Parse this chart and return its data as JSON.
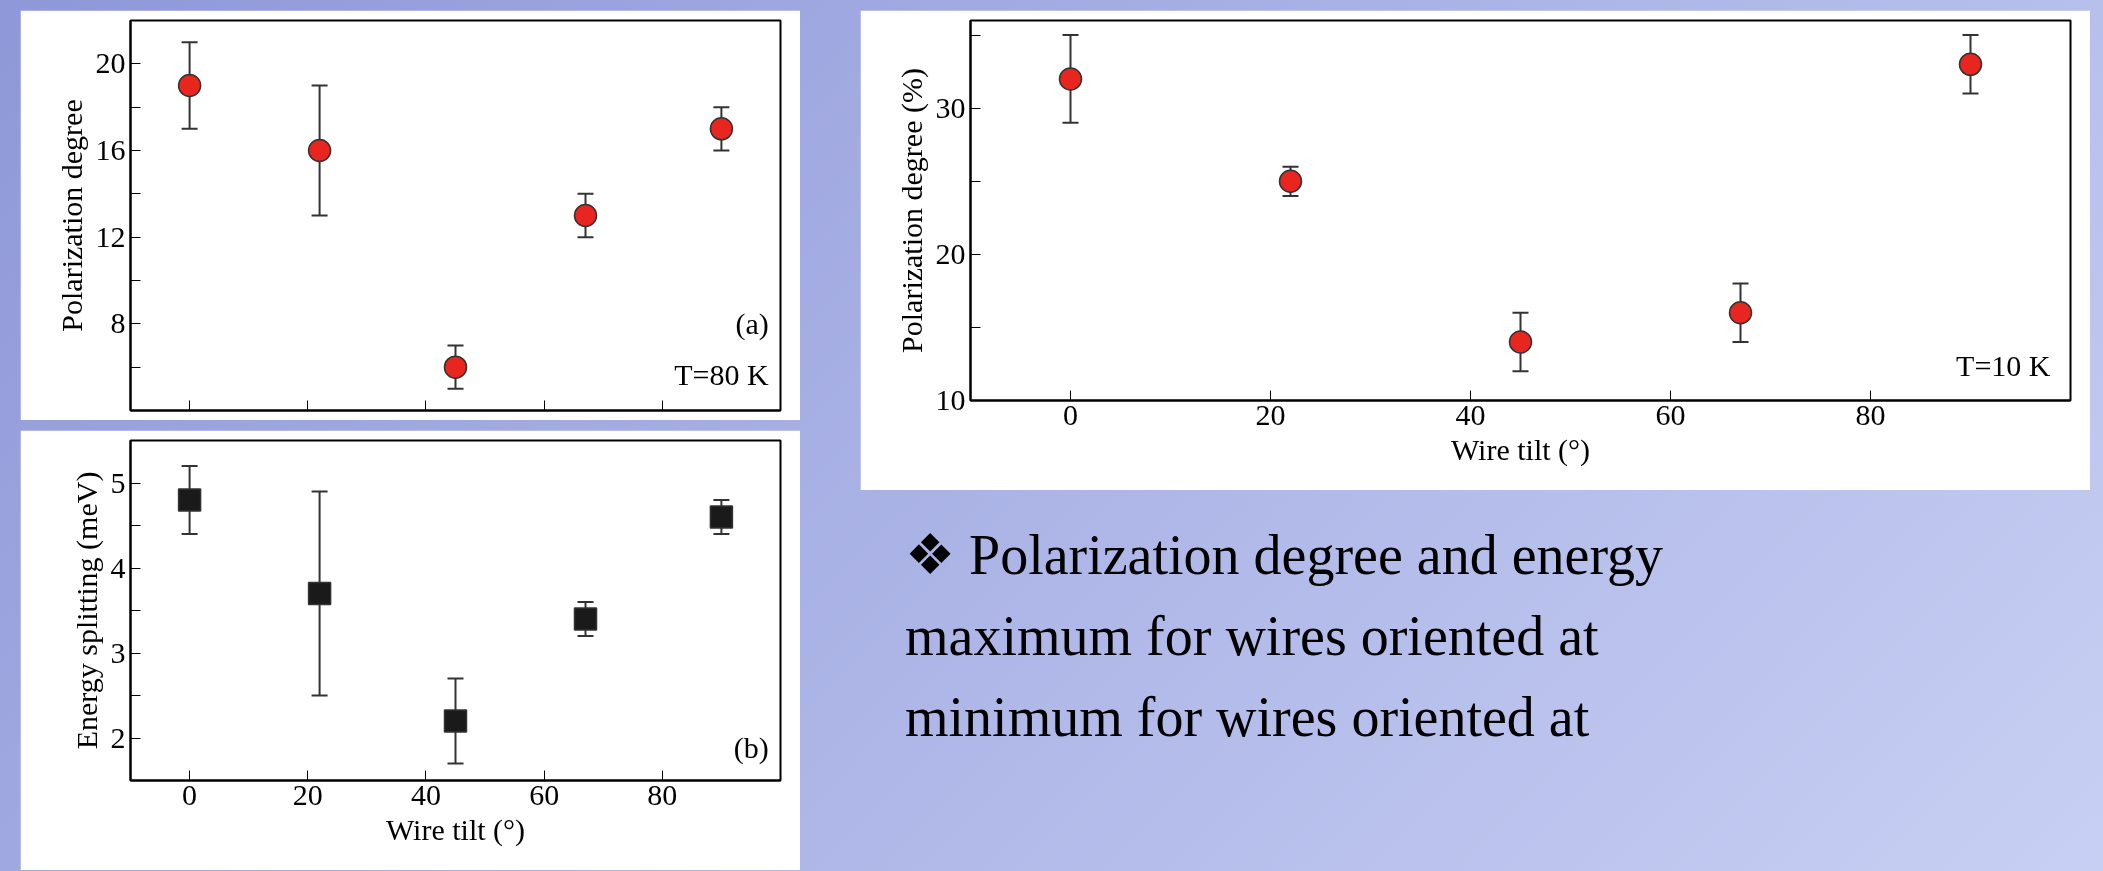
{
  "chart_data": [
    {
      "type": "scatter",
      "x": [
        0,
        22,
        45,
        67,
        90
      ],
      "ylabel": "Polarization degree",
      "marker": "circle",
      "series": [
        {
          "color": "#e8251f",
          "values": [
            19,
            16,
            6,
            13,
            17
          ],
          "errors": [
            [
              17,
              21
            ],
            [
              13,
              19
            ],
            [
              5,
              7
            ],
            [
              12,
              14
            ],
            [
              16,
              18
            ]
          ]
        }
      ],
      "xlim": [
        -10,
        100
      ],
      "xticks": [
        {
          "value": 0,
          "label": null
        },
        {
          "value": 20,
          "label": null
        },
        {
          "value": 40,
          "label": null
        },
        {
          "value": 60,
          "label": null
        },
        {
          "value": 80,
          "label": null
        }
      ],
      "ylim": [
        4,
        22
      ],
      "yticks": [
        {
          "value": 6,
          "label": null
        },
        8,
        {
          "value": 10,
          "label": null
        },
        12,
        {
          "value": 14,
          "label": null
        },
        16,
        {
          "value": 18,
          "label": null
        },
        20
      ],
      "tick_labels": "y",
      "grid": false,
      "annotations": [
        "(a)",
        "T=80 K"
      ]
    },
    {
      "type": "scatter",
      "x": [
        0,
        22,
        45,
        67,
        90
      ],
      "ylabel": "Energy splitting (meV)",
      "xlabel": "Wire tilt (°)",
      "marker": "square",
      "series": [
        {
          "color": "#1a1a1a",
          "values": [
            4.8,
            3.7,
            2.2,
            3.4,
            4.6
          ],
          "errors": [
            [
              4.4,
              5.2
            ],
            [
              2.5,
              4.9
            ],
            [
              1.7,
              2.7
            ],
            [
              3.2,
              3.6
            ],
            [
              4.4,
              4.8
            ]
          ]
        }
      ],
      "xlim": [
        -10,
        100
      ],
      "xticks": [
        0,
        20,
        40,
        60,
        80
      ],
      "ylim": [
        1.5,
        5.5
      ],
      "yticks": [
        2,
        {
          "value": 2.5,
          "label": null
        },
        3,
        {
          "value": 3.5,
          "label": null
        },
        4,
        {
          "value": 4.5,
          "label": null
        },
        5
      ],
      "grid": false,
      "annotations": [
        "(b)"
      ]
    },
    {
      "type": "scatter",
      "x": [
        0,
        22,
        45,
        67,
        90
      ],
      "ylabel": "Polarization degree (%)",
      "xlabel": "Wire tilt (°)",
      "marker": "circle",
      "series": [
        {
          "color": "#e8251f",
          "values": [
            32,
            25,
            14,
            16,
            33
          ],
          "errors": [
            [
              29,
              35
            ],
            [
              24,
              26
            ],
            [
              12,
              16
            ],
            [
              14,
              18
            ],
            [
              31,
              35
            ]
          ]
        }
      ],
      "xlim": [
        -10,
        100
      ],
      "xticks": [
        0,
        20,
        40,
        60,
        80
      ],
      "ylim": [
        10,
        36
      ],
      "yticks": [
        10,
        {
          "value": 15,
          "label": null
        },
        20,
        {
          "value": 25,
          "label": null
        },
        30,
        {
          "value": 35,
          "label": null
        }
      ],
      "grid": false,
      "annotations": [
        "T=10 K"
      ]
    },
    {
      "type": "other",
      "annotations": [
        "❖ Polarization degree and energy",
        "maximum for wires oriented at",
        "minimum for wires oriented at"
      ]
    }
  ]
}
